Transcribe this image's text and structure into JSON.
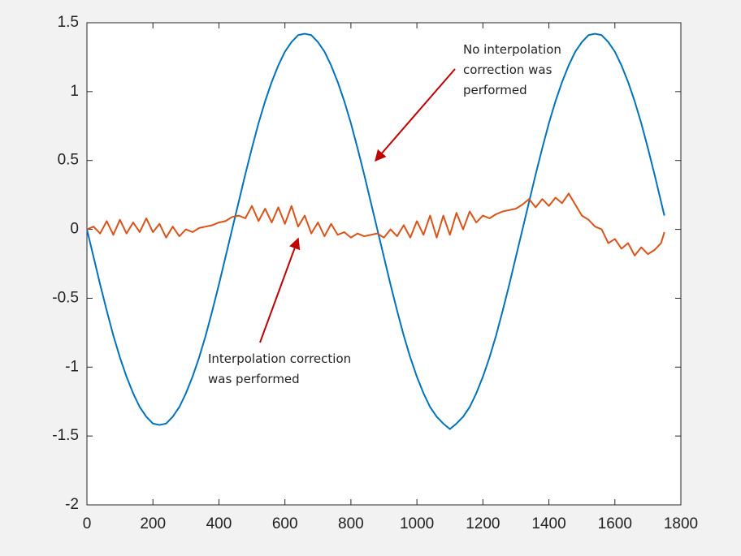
{
  "chart_data": {
    "type": "line",
    "x": [
      0,
      20,
      40,
      60,
      80,
      100,
      120,
      140,
      160,
      180,
      200,
      220,
      240,
      260,
      280,
      300,
      320,
      340,
      360,
      380,
      400,
      420,
      440,
      460,
      480,
      500,
      520,
      540,
      560,
      580,
      600,
      620,
      640,
      660,
      680,
      700,
      720,
      740,
      760,
      780,
      800,
      820,
      840,
      860,
      880,
      900,
      920,
      940,
      960,
      980,
      1000,
      1020,
      1040,
      1060,
      1080,
      1100,
      1120,
      1140,
      1160,
      1180,
      1200,
      1220,
      1240,
      1260,
      1280,
      1300,
      1320,
      1340,
      1360,
      1380,
      1400,
      1420,
      1440,
      1460,
      1480,
      1500,
      1520,
      1540,
      1560,
      1580,
      1600,
      1620,
      1640,
      1660,
      1680,
      1700,
      1720,
      1740,
      1750
    ],
    "series": [
      {
        "color": "#0072bd",
        "values": [
          0,
          -0.2,
          -0.4,
          -0.59,
          -0.77,
          -0.93,
          -1.07,
          -1.19,
          -1.29,
          -1.36,
          -1.41,
          -1.42,
          -1.41,
          -1.36,
          -1.29,
          -1.19,
          -1.07,
          -0.93,
          -0.77,
          -0.59,
          -0.4,
          -0.2,
          0,
          0.2,
          0.4,
          0.59,
          0.77,
          0.93,
          1.07,
          1.19,
          1.29,
          1.36,
          1.41,
          1.42,
          1.41,
          1.36,
          1.29,
          1.19,
          1.07,
          0.93,
          0.77,
          0.59,
          0.4,
          0.2,
          0,
          -0.2,
          -0.4,
          -0.59,
          -0.77,
          -0.93,
          -1.07,
          -1.19,
          -1.29,
          -1.36,
          -1.41,
          -1.45,
          -1.41,
          -1.36,
          -1.29,
          -1.19,
          -1.07,
          -0.93,
          -0.77,
          -0.59,
          -0.4,
          -0.2,
          0,
          0.2,
          0.4,
          0.59,
          0.77,
          0.93,
          1.07,
          1.19,
          1.29,
          1.36,
          1.41,
          1.42,
          1.41,
          1.36,
          1.29,
          1.19,
          1.07,
          0.93,
          0.77,
          0.59,
          0.4,
          0.2,
          0.1
        ]
      },
      {
        "color": "#d95319",
        "values": [
          0,
          0.02,
          -0.03,
          0.06,
          -0.04,
          0.07,
          -0.03,
          0.05,
          -0.02,
          0.08,
          -0.02,
          0.04,
          -0.06,
          0.02,
          -0.05,
          0.0,
          -0.02,
          0.01,
          0.02,
          0.03,
          0.05,
          0.06,
          0.09,
          0.1,
          0.08,
          0.17,
          0.06,
          0.15,
          0.05,
          0.16,
          0.04,
          0.17,
          0.02,
          0.1,
          -0.03,
          0.05,
          -0.05,
          0.04,
          -0.04,
          -0.02,
          -0.06,
          -0.03,
          -0.05,
          -0.04,
          -0.03,
          -0.06,
          0.0,
          -0.05,
          0.03,
          -0.06,
          0.06,
          -0.04,
          0.1,
          -0.06,
          0.1,
          -0.04,
          0.12,
          0.0,
          0.13,
          0.05,
          0.1,
          0.08,
          0.11,
          0.13,
          0.14,
          0.15,
          0.18,
          0.22,
          0.16,
          0.22,
          0.17,
          0.23,
          0.19,
          0.26,
          0.18,
          0.1,
          0.07,
          0.02,
          0.0,
          -0.1,
          -0.07,
          -0.14,
          -0.1,
          -0.19,
          -0.13,
          -0.18,
          -0.15,
          -0.1,
          -0.02
        ]
      }
    ],
    "xlim": [
      0,
      1800
    ],
    "xticks": [
      0,
      200,
      400,
      600,
      800,
      1000,
      1200,
      1400,
      1600,
      1800
    ],
    "ylim": [
      -2,
      1.5
    ],
    "yticks": [
      -2,
      -1.5,
      -1,
      -0.5,
      0,
      0.5,
      1,
      1.5
    ],
    "grid": false,
    "annotations": [
      {
        "lines": [
          "No interpolation",
          "correction was",
          "performed"
        ]
      },
      {
        "lines": [
          "Interpolation correction",
          "was performed"
        ]
      }
    ]
  }
}
